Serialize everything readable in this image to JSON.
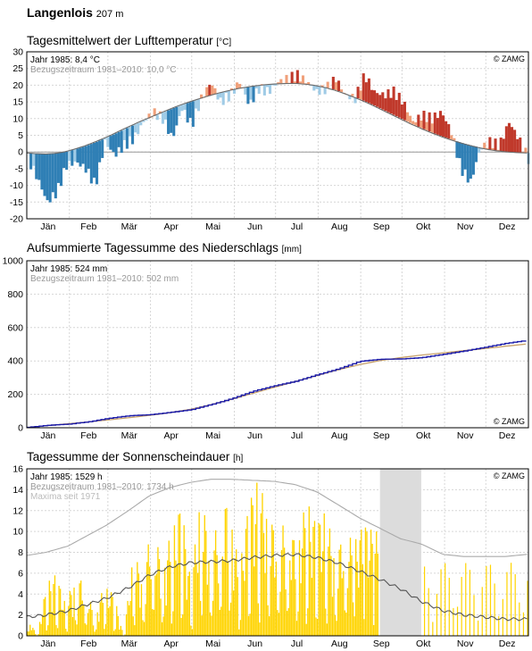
{
  "station": {
    "name": "Langenlois",
    "altitude": "207 m"
  },
  "months": [
    "Jän",
    "Feb",
    "Mär",
    "Apr",
    "Mai",
    "Jun",
    "Jul",
    "Aug",
    "Sep",
    "Okt",
    "Nov",
    "Dez"
  ],
  "copyright": "© ZAMG",
  "colors": {
    "warm_dark": "#c0392b",
    "warm_light": "#f0a07a",
    "cold_dark": "#2f7fb5",
    "cold_light": "#9fcbe6",
    "precip_year": "#1a1aa8",
    "precip_ref": "#c8a26a",
    "sun_bar": "#ffd400",
    "sun_mean": "#555555",
    "sun_max": "#aaaaaa",
    "missing_band": "#dcdcdc"
  },
  "panels": {
    "temperature": {
      "title": "Tagesmittelwert der Lufttemperatur",
      "unit": "[°C]",
      "legend_year": "Jahr 1985: 8,4 °C",
      "legend_ref": "Bezugszeitraum 1981–2010: 10,0 °C"
    },
    "precipitation": {
      "title": "Aufsummierte Tagessumme des Niederschlags",
      "unit": "[mm]",
      "legend_year": "Jahr 1985: 524 mm",
      "legend_ref": "Bezugszeitraum 1981–2010: 502 mm"
    },
    "sunshine": {
      "title": "Tagessumme der Sonnenscheindauer",
      "unit": "[h]",
      "legend_year": "Jahr 1985: 1529 h",
      "legend_ref": "Bezugszeitraum 1981–2010: 1734 h",
      "legend_max": "Maxima seit 1971"
    }
  },
  "chart_data": [
    {
      "type": "area",
      "ylim": [
        -20,
        30
      ],
      "yticks": [
        30,
        25,
        20,
        15,
        10,
        5,
        0,
        -5,
        -10,
        -15,
        -20
      ],
      "grid": true,
      "series": [
        {
          "name": "Jahr 1985",
          "x": [
            1,
            8,
            15,
            22,
            29,
            36,
            43,
            50,
            57,
            64,
            71,
            78,
            85,
            92,
            99,
            106,
            113,
            120,
            127,
            134,
            141,
            148,
            155,
            162,
            169,
            176,
            183,
            190,
            197,
            204,
            211,
            218,
            225,
            232,
            239,
            246,
            253,
            260,
            267,
            274,
            281,
            288,
            295,
            302,
            309,
            316,
            323,
            330,
            337,
            344,
            351,
            358,
            365
          ],
          "values": [
            -2,
            -8,
            -15,
            -12,
            -4,
            -3,
            -5,
            -10,
            3,
            -1,
            2,
            4,
            9,
            12,
            10,
            4,
            13,
            8,
            16,
            21,
            15,
            17,
            21,
            14,
            19,
            18,
            21,
            22,
            23,
            21,
            18,
            19,
            22,
            17,
            16,
            23,
            18,
            17,
            18,
            15,
            9,
            11,
            10,
            12,
            6,
            -5,
            -9,
            1,
            3,
            2,
            9,
            4,
            -2
          ]
        },
        {
          "name": "Bezugszeitraum 1981–2010",
          "x": [
            1,
            8,
            15,
            22,
            29,
            36,
            43,
            50,
            57,
            64,
            71,
            78,
            85,
            92,
            99,
            106,
            113,
            120,
            127,
            134,
            141,
            148,
            155,
            162,
            169,
            176,
            183,
            190,
            197,
            204,
            211,
            218,
            225,
            232,
            239,
            246,
            253,
            260,
            267,
            274,
            281,
            288,
            295,
            302,
            309,
            316,
            323,
            330,
            337,
            344,
            351,
            358,
            365
          ],
          "values": [
            -0.3,
            -0.5,
            -0.6,
            -0.4,
            0.1,
            0.9,
            1.8,
            2.9,
            4.1,
            5.4,
            6.8,
            8.1,
            9.4,
            10.6,
            11.8,
            13,
            14.1,
            15.1,
            16,
            16.9,
            17.7,
            18.4,
            19,
            19.5,
            19.9,
            20.2,
            20.4,
            20.5,
            20.5,
            20.3,
            19.9,
            19.3,
            18.5,
            17.5,
            16.4,
            15.2,
            13.9,
            12.5,
            11.1,
            9.7,
            8.3,
            7,
            5.8,
            4.7,
            3.7,
            2.8,
            2,
            1.3,
            0.7,
            0.3,
            0,
            -0.2,
            -0.3
          ]
        }
      ]
    },
    {
      "type": "line",
      "ylim": [
        0,
        1000
      ],
      "yticks": [
        1000,
        800,
        600,
        400,
        200,
        0
      ],
      "grid": true,
      "series": [
        {
          "name": "Jahr 1985",
          "x": [
            1,
            15,
            31,
            45,
            59,
            75,
            90,
            105,
            120,
            135,
            150,
            165,
            181,
            196,
            212,
            227,
            243,
            258,
            273,
            288,
            304,
            319,
            334,
            349,
            365
          ],
          "values": [
            2,
            14,
            22,
            35,
            55,
            72,
            78,
            92,
            108,
            140,
            175,
            218,
            252,
            278,
            318,
            352,
            398,
            410,
            412,
            420,
            440,
            460,
            482,
            505,
            524
          ]
        },
        {
          "name": "Bezugszeitraum 1981–2010",
          "x": [
            1,
            15,
            31,
            45,
            59,
            75,
            90,
            105,
            120,
            135,
            150,
            165,
            181,
            196,
            212,
            227,
            243,
            258,
            273,
            288,
            304,
            319,
            334,
            349,
            365
          ],
          "values": [
            1,
            12,
            24,
            34,
            46,
            60,
            74,
            90,
            110,
            138,
            170,
            205,
            242,
            276,
            312,
            346,
            378,
            402,
            420,
            435,
            448,
            462,
            474,
            488,
            502
          ]
        }
      ]
    },
    {
      "type": "bar",
      "ylim": [
        0,
        16
      ],
      "yticks": [
        16,
        14,
        12,
        10,
        8,
        6,
        4,
        2,
        0
      ],
      "grid": true,
      "missing_period_days": [
        258,
        288
      ],
      "series": [
        {
          "name": "Jahr 1985",
          "x": [
            1,
            8,
            15,
            22,
            29,
            36,
            43,
            50,
            57,
            64,
            71,
            78,
            85,
            92,
            99,
            106,
            113,
            120,
            127,
            134,
            141,
            148,
            155,
            162,
            169,
            176,
            183,
            190,
            197,
            204,
            211,
            218,
            225,
            232,
            239,
            246,
            253
          ],
          "values": [
            2,
            0,
            5,
            6,
            3,
            6,
            5,
            2,
            5,
            4,
            0,
            8,
            6,
            11,
            7,
            10,
            13,
            5,
            14,
            9,
            11,
            14,
            6,
            13,
            15,
            12,
            10,
            11,
            9,
            13,
            11,
            12,
            8,
            10,
            9,
            11,
            10
          ]
        },
        {
          "name": "Bezugszeitraum 1981–2010",
          "x": [
            1,
            15,
            31,
            45,
            59,
            75,
            90,
            105,
            120,
            135,
            150,
            165,
            181,
            196,
            212,
            227,
            243,
            258,
            273,
            288,
            304,
            319,
            334,
            349,
            365
          ],
          "values": [
            1.8,
            2,
            2.4,
            3,
            3.6,
            4.6,
            5.8,
            6.6,
            7,
            7.1,
            7.2,
            7.5,
            7.7,
            7.8,
            7.5,
            7,
            6.2,
            5.4,
            4.5,
            3.3,
            2.4,
            2,
            1.8,
            1.6,
            1.6
          ]
        },
        {
          "name": "Maxima seit 1971",
          "x": [
            1,
            15,
            31,
            45,
            59,
            75,
            90,
            105,
            120,
            135,
            150,
            165,
            181,
            196,
            212,
            227,
            243,
            258,
            273,
            288,
            304,
            319,
            334,
            349,
            365
          ],
          "values": [
            7.7,
            8,
            8.6,
            9.6,
            10.6,
            12,
            13.4,
            14.2,
            14.7,
            15,
            15,
            14.9,
            14.8,
            14.5,
            13.8,
            12.6,
            11.3,
            10.3,
            9.3,
            8.8,
            7.8,
            7.6,
            7.6,
            7.6,
            7.8
          ]
        }
      ]
    }
  ]
}
